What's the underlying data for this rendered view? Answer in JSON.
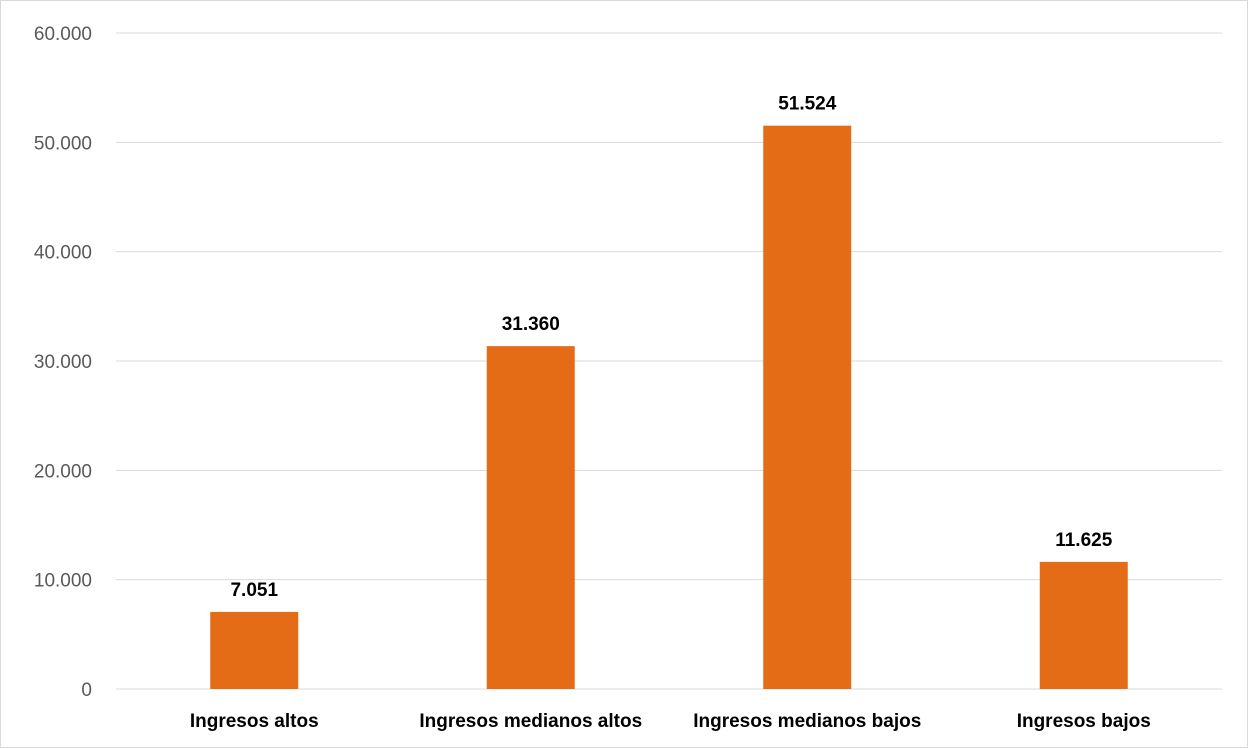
{
  "chart_data": {
    "type": "bar",
    "categories": [
      "Ingresos altos",
      "Ingresos medianos altos",
      "Ingresos medianos bajos",
      "Ingresos bajos"
    ],
    "values": [
      7051,
      31360,
      51524,
      11625
    ],
    "data_labels": [
      "7.051",
      "31.360",
      "51.524",
      "11.625"
    ],
    "y_ticks": [
      0,
      10000,
      20000,
      30000,
      40000,
      50000,
      60000
    ],
    "y_tick_labels": [
      "0",
      "10.000",
      "20.000",
      "30.000",
      "40.000",
      "50.000",
      "60.000"
    ],
    "ylim": [
      0,
      60000
    ],
    "title": "",
    "xlabel": "",
    "ylabel": "",
    "grid": true,
    "legend": "none",
    "colors": {
      "bar": "#E46C17",
      "grid": "#d9d9d9",
      "axis_text": "#595959",
      "label_text": "#000000"
    }
  }
}
